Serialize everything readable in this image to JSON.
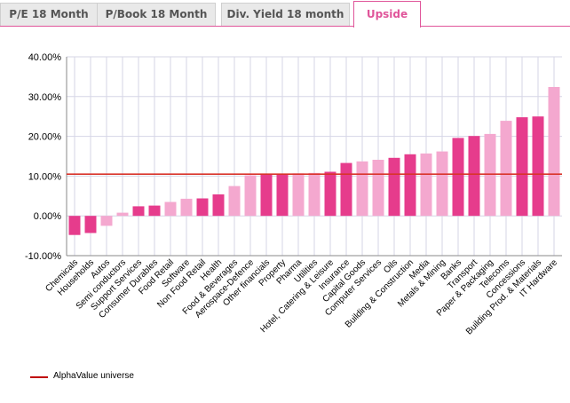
{
  "tabs": [
    {
      "label": "P/E 18 Month",
      "active": false
    },
    {
      "label": "P/Book 18 Month",
      "active": false
    },
    {
      "label": "Div. Yield 18 month",
      "active": false
    },
    {
      "label": "Upside",
      "active": true
    }
  ],
  "colors": {
    "accent": "#e0559a",
    "bar_dark": "#e63c8c",
    "bar_light": "#f4a8cf",
    "reference_line": "#d9342b",
    "grid": "#d6d6e6"
  },
  "chart_data": {
    "type": "bar",
    "categories": [
      "Chemicals",
      "Households",
      "Autos",
      "Semi conductors",
      "Support Services",
      "Consumer Durables",
      "Food Retail",
      "Software",
      "Non Food Retail",
      "Health",
      "Food & Beverages",
      "Aerospace-Defence",
      "Other financials",
      "Property",
      "Pharma",
      "Utilities",
      "Hotel, Catering & Leisure",
      "Insurance",
      "Capital Goods",
      "Computer Services",
      "Oils",
      "Building & Construction",
      "Media",
      "Metals & Mining",
      "Banks",
      "Transport",
      "Paper & Packaging",
      "Telecoms",
      "Concessions",
      "Building Prod. & Materials",
      "IT Hardware"
    ],
    "values": [
      -4.8,
      -4.3,
      -2.5,
      0.8,
      2.4,
      2.6,
      3.5,
      4.3,
      4.4,
      5.4,
      7.5,
      10.2,
      10.5,
      10.6,
      10.7,
      10.8,
      11.1,
      13.3,
      13.7,
      14.1,
      14.6,
      15.5,
      15.7,
      16.2,
      19.6,
      20.1,
      20.6,
      23.9,
      24.8,
      25.0,
      32.4
    ],
    "bar_shades": [
      "dark",
      "dark",
      "light",
      "light",
      "dark",
      "dark",
      "light",
      "light",
      "dark",
      "dark",
      "light",
      "light",
      "dark",
      "dark",
      "light",
      "light",
      "dark",
      "dark",
      "light",
      "light",
      "dark",
      "dark",
      "light",
      "light",
      "dark",
      "dark",
      "light",
      "light",
      "dark",
      "dark",
      "light"
    ],
    "reference_line": {
      "name": "AlphaValue universe",
      "value": 10.5
    },
    "y_ticks": [
      "40.00%",
      "30.00%",
      "20.00%",
      "10.00%",
      "0.00%",
      "-10.00%"
    ],
    "y_tick_values": [
      40,
      30,
      20,
      10,
      0,
      -10
    ],
    "ylim": [
      -10,
      40
    ],
    "grid": true,
    "legend_position": "bottom-left",
    "title": "",
    "xlabel": "",
    "ylabel": ""
  }
}
